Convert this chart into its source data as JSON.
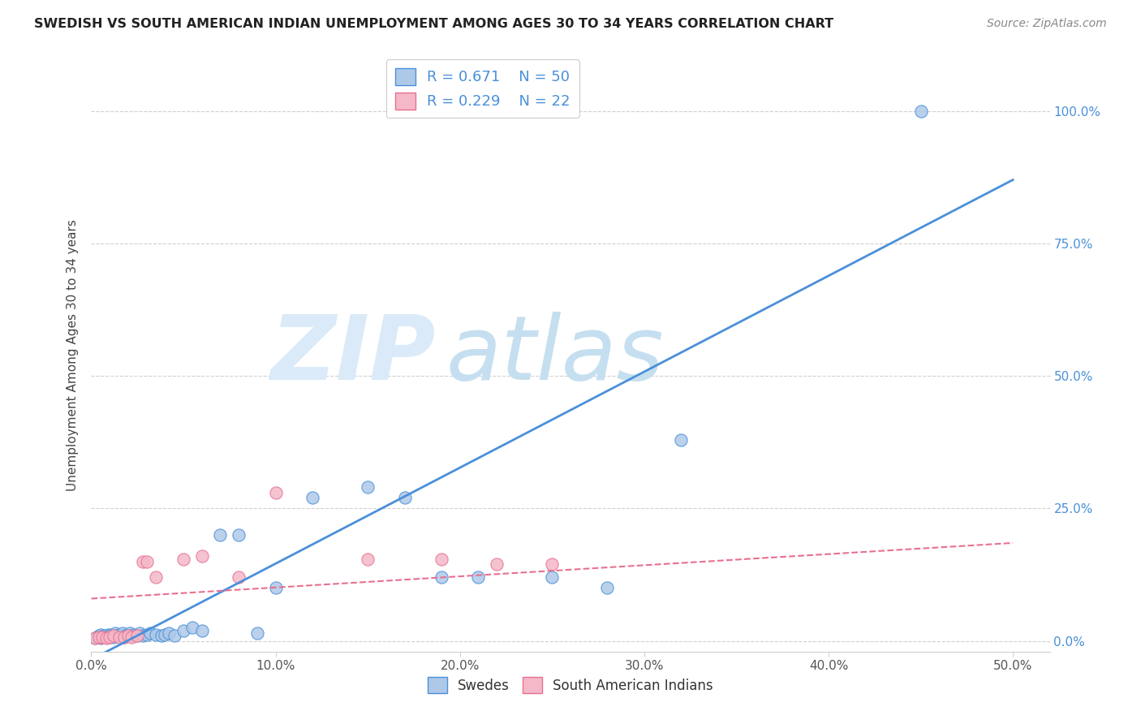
{
  "title": "SWEDISH VS SOUTH AMERICAN INDIAN UNEMPLOYMENT AMONG AGES 30 TO 34 YEARS CORRELATION CHART",
  "source": "Source: ZipAtlas.com",
  "ylabel": "Unemployment Among Ages 30 to 34 years",
  "xlim": [
    0.0,
    0.52
  ],
  "ylim": [
    -0.02,
    1.1
  ],
  "ytick_vals": [
    0.0,
    0.25,
    0.5,
    0.75,
    1.0
  ],
  "ytick_labels": [
    "0.0%",
    "25.0%",
    "50.0%",
    "75.0%",
    "100.0%"
  ],
  "xtick_vals": [
    0.0,
    0.1,
    0.2,
    0.3,
    0.4,
    0.5
  ],
  "xtick_labels": [
    "0.0%",
    "10.0%",
    "20.0%",
    "30.0%",
    "40.0%",
    "50.0%"
  ],
  "legend_r1": "R = 0.671",
  "legend_n1": "N = 50",
  "legend_r2": "R = 0.229",
  "legend_n2": "N = 22",
  "blue_fill": "#aec8e8",
  "blue_edge": "#4a90d9",
  "pink_fill": "#f4b8c8",
  "pink_edge": "#e87090",
  "blue_line_color": "#4a90d9",
  "pink_line_color": "#e87090",
  "watermark_color_zip": "#daeaf8",
  "watermark_color_atlas": "#c5dff0",
  "background_color": "#ffffff",
  "grid_color": "#d0d0d0",
  "swedes_x": [
    0.002,
    0.003,
    0.004,
    0.005,
    0.005,
    0.006,
    0.007,
    0.008,
    0.009,
    0.01,
    0.01,
    0.011,
    0.012,
    0.013,
    0.014,
    0.015,
    0.016,
    0.017,
    0.018,
    0.019,
    0.02,
    0.021,
    0.022,
    0.023,
    0.025,
    0.026,
    0.028,
    0.03,
    0.032,
    0.035,
    0.038,
    0.04,
    0.042,
    0.045,
    0.05,
    0.055,
    0.06,
    0.07,
    0.08,
    0.09,
    0.1,
    0.12,
    0.15,
    0.17,
    0.19,
    0.21,
    0.25,
    0.28,
    0.32,
    0.45
  ],
  "swedes_y": [
    0.005,
    0.008,
    0.01,
    0.005,
    0.012,
    0.008,
    0.01,
    0.007,
    0.012,
    0.008,
    0.01,
    0.012,
    0.008,
    0.015,
    0.01,
    0.012,
    0.01,
    0.015,
    0.008,
    0.012,
    0.01,
    0.015,
    0.01,
    0.012,
    0.01,
    0.015,
    0.01,
    0.012,
    0.015,
    0.012,
    0.01,
    0.012,
    0.015,
    0.01,
    0.02,
    0.025,
    0.02,
    0.2,
    0.2,
    0.015,
    0.1,
    0.27,
    0.29,
    0.27,
    0.12,
    0.12,
    0.12,
    0.1,
    0.38,
    1.0
  ],
  "sa_x": [
    0.002,
    0.004,
    0.006,
    0.008,
    0.01,
    0.012,
    0.015,
    0.018,
    0.02,
    0.022,
    0.025,
    0.028,
    0.03,
    0.035,
    0.05,
    0.06,
    0.08,
    0.1,
    0.15,
    0.19,
    0.22,
    0.25
  ],
  "sa_y": [
    0.005,
    0.008,
    0.008,
    0.005,
    0.008,
    0.01,
    0.008,
    0.008,
    0.01,
    0.008,
    0.01,
    0.15,
    0.15,
    0.12,
    0.155,
    0.16,
    0.12,
    0.28,
    0.155,
    0.155,
    0.145,
    0.145
  ],
  "blue_trend": [
    -0.035,
    0.87
  ],
  "pink_trend": [
    0.08,
    0.185
  ],
  "marker_size": 120
}
